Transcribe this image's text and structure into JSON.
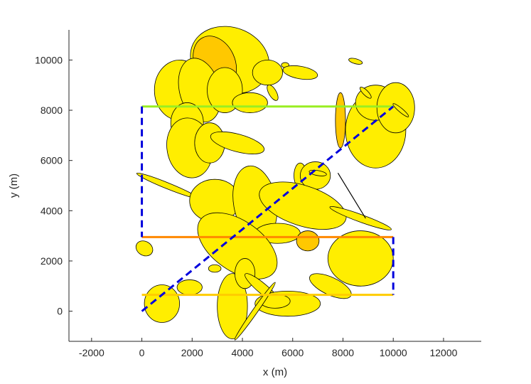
{
  "chart_data": {
    "type": "scatter",
    "title": "",
    "xlabel": "x (m)",
    "ylabel": "y (m)",
    "xlim": [
      -2900,
      13500
    ],
    "ylim": [
      -1200,
      11200
    ],
    "xticks": [
      -2000,
      0,
      2000,
      4000,
      6000,
      8000,
      10000,
      12000
    ],
    "yticks": [
      0,
      2000,
      4000,
      6000,
      8000,
      10000
    ],
    "grid": false,
    "legend": "none",
    "colors": {
      "ellipse_fill": "#ffee00",
      "ellipse_fill_dark": "#ffc800",
      "ellipse_edge": "#000000",
      "top_line": "#99ee22",
      "middle_line": "#ff8800",
      "bottom_line": "#ffcc00",
      "dashed": "#0000dd"
    },
    "ellipses": [
      {
        "cx": 3500,
        "cy": 10000,
        "rx": 1600,
        "ry": 1300,
        "angle": -20,
        "fill": "#ffee00"
      },
      {
        "cx": 2900,
        "cy": 9900,
        "rx": 800,
        "ry": 1100,
        "angle": 25,
        "fill": "#ffc800"
      },
      {
        "cx": 1500,
        "cy": 8800,
        "rx": 1000,
        "ry": 1200,
        "angle": 0,
        "fill": "#ffee00"
      },
      {
        "cx": 2300,
        "cy": 8800,
        "rx": 800,
        "ry": 1300,
        "angle": 15,
        "fill": "#ffee00"
      },
      {
        "cx": 3300,
        "cy": 8800,
        "rx": 700,
        "ry": 900,
        "angle": 0,
        "fill": "#ffee00"
      },
      {
        "cx": 5000,
        "cy": 9500,
        "rx": 600,
        "ry": 500,
        "angle": 0,
        "fill": "#ffee00"
      },
      {
        "cx": 5700,
        "cy": 9800,
        "rx": 150,
        "ry": 100,
        "angle": 0,
        "fill": "#ffee00"
      },
      {
        "cx": 6300,
        "cy": 9500,
        "rx": 700,
        "ry": 250,
        "angle": -10,
        "fill": "#ffee00"
      },
      {
        "cx": 4300,
        "cy": 8300,
        "rx": 700,
        "ry": 400,
        "angle": 0,
        "fill": "#ffee00"
      },
      {
        "cx": 5200,
        "cy": 8700,
        "rx": 150,
        "ry": 350,
        "angle": 30,
        "fill": "#ffee00"
      },
      {
        "cx": 1800,
        "cy": 7500,
        "rx": 650,
        "ry": 800,
        "angle": 0,
        "fill": "#ffee00"
      },
      {
        "cx": 1900,
        "cy": 6500,
        "rx": 900,
        "ry": 1200,
        "angle": 10,
        "fill": "#ffee00"
      },
      {
        "cx": 2700,
        "cy": 6700,
        "rx": 600,
        "ry": 800,
        "angle": 0,
        "fill": "#ffee00"
      },
      {
        "cx": 3800,
        "cy": 6700,
        "rx": 1100,
        "ry": 350,
        "angle": -15,
        "fill": "#ffee00"
      },
      {
        "cx": 9300,
        "cy": 7200,
        "rx": 1200,
        "ry": 1500,
        "angle": 0,
        "fill": "#ffee00"
      },
      {
        "cx": 9300,
        "cy": 8300,
        "rx": 800,
        "ry": 700,
        "angle": 0,
        "fill": "#ffee00"
      },
      {
        "cx": 10100,
        "cy": 8100,
        "rx": 750,
        "ry": 1000,
        "angle": 0,
        "fill": "#ffee00"
      },
      {
        "cx": 7900,
        "cy": 7600,
        "rx": 200,
        "ry": 1100,
        "angle": 0,
        "fill": "#ffc800"
      },
      {
        "cx": 8500,
        "cy": 9950,
        "rx": 280,
        "ry": 100,
        "angle": -15,
        "fill": "#ffee00"
      },
      {
        "cx": 8900,
        "cy": 8700,
        "rx": 300,
        "ry": 100,
        "angle": -45,
        "fill": "#ffee00"
      },
      {
        "cx": 10300,
        "cy": 8000,
        "rx": 400,
        "ry": 80,
        "angle": -40,
        "fill": "#ffee00"
      },
      {
        "cx": 1000,
        "cy": 5000,
        "rx": 1300,
        "ry": 120,
        "angle": -22,
        "fill": "#ffee00"
      },
      {
        "cx": 2900,
        "cy": 4400,
        "rx": 1000,
        "ry": 850,
        "angle": 0,
        "fill": "#ffee00"
      },
      {
        "cx": 4500,
        "cy": 4300,
        "rx": 850,
        "ry": 1500,
        "angle": 10,
        "fill": "#ffee00"
      },
      {
        "cx": 6300,
        "cy": 5400,
        "rx": 250,
        "ry": 500,
        "angle": 0,
        "fill": "#ffee00"
      },
      {
        "cx": 6900,
        "cy": 5400,
        "rx": 600,
        "ry": 550,
        "angle": 0,
        "fill": "#ffee00"
      },
      {
        "cx": 7000,
        "cy": 5500,
        "rx": 350,
        "ry": 100,
        "angle": -10,
        "fill": "#ffee00"
      },
      {
        "cx": 6400,
        "cy": 4200,
        "rx": 1800,
        "ry": 800,
        "angle": -18,
        "fill": "#ffee00"
      },
      {
        "cx": 8700,
        "cy": 3700,
        "rx": 1300,
        "ry": 150,
        "angle": -20,
        "fill": "#ffee00"
      },
      {
        "cx": 5400,
        "cy": 3100,
        "rx": 900,
        "ry": 400,
        "angle": 0,
        "fill": "#ffee00"
      },
      {
        "cx": 2900,
        "cy": 3200,
        "rx": 400,
        "ry": 350,
        "angle": 0,
        "fill": "#ffee00"
      },
      {
        "cx": 3800,
        "cy": 2600,
        "rx": 1800,
        "ry": 1000,
        "angle": -35,
        "fill": "#ffee00"
      },
      {
        "cx": 2900,
        "cy": 1700,
        "rx": 250,
        "ry": 150,
        "angle": 0,
        "fill": "#ffee00"
      },
      {
        "cx": 6600,
        "cy": 2800,
        "rx": 450,
        "ry": 400,
        "angle": 0,
        "fill": "#ffc800"
      },
      {
        "cx": 8700,
        "cy": 2100,
        "rx": 1300,
        "ry": 1100,
        "angle": 0,
        "fill": "#ffee00"
      },
      {
        "cx": 100,
        "cy": 2500,
        "rx": 350,
        "ry": 280,
        "angle": -30,
        "fill": "#ffee00"
      },
      {
        "cx": 800,
        "cy": 300,
        "rx": 700,
        "ry": 750,
        "angle": 0,
        "fill": "#ffee00"
      },
      {
        "cx": 1900,
        "cy": 950,
        "rx": 500,
        "ry": 300,
        "angle": 0,
        "fill": "#ffee00"
      },
      {
        "cx": 3600,
        "cy": 200,
        "rx": 600,
        "ry": 1300,
        "angle": 0,
        "fill": "#ffee00"
      },
      {
        "cx": 4100,
        "cy": 1500,
        "rx": 400,
        "ry": 600,
        "angle": 0,
        "fill": "#ffee00"
      },
      {
        "cx": 4800,
        "cy": 900,
        "rx": 900,
        "ry": 200,
        "angle": -40,
        "fill": "#ffee00"
      },
      {
        "cx": 5800,
        "cy": 300,
        "rx": 1300,
        "ry": 500,
        "angle": 0,
        "fill": "#ffee00"
      },
      {
        "cx": 5300,
        "cy": 400,
        "rx": 600,
        "ry": 280,
        "angle": 0,
        "fill": "#ffee00"
      },
      {
        "cx": 7500,
        "cy": 1000,
        "rx": 900,
        "ry": 350,
        "angle": -25,
        "fill": "#ffee00"
      },
      {
        "cx": 4500,
        "cy": 0,
        "rx": 1400,
        "ry": 100,
        "angle": 55,
        "fill": "#ffee00"
      }
    ],
    "segments": [
      {
        "x1": 0,
        "y1": 8150,
        "x2": 10000,
        "y2": 8150,
        "color": "#99ee22",
        "dashed": false,
        "width": 3
      },
      {
        "x1": 0,
        "y1": 2950,
        "x2": 10000,
        "y2": 2950,
        "color": "#ff8800",
        "dashed": false,
        "width": 3
      },
      {
        "x1": 0,
        "y1": 650,
        "x2": 10000,
        "y2": 650,
        "color": "#ffcc00",
        "dashed": false,
        "width": 3
      },
      {
        "x1": 0,
        "y1": 8150,
        "x2": 0,
        "y2": 2950,
        "color": "#0000dd",
        "dashed": true,
        "width": 3
      },
      {
        "x1": 10000,
        "y1": 2950,
        "x2": 10000,
        "y2": 650,
        "color": "#0000dd",
        "dashed": true,
        "width": 3
      },
      {
        "x1": 0,
        "y1": 0,
        "x2": 10000,
        "y2": 8150,
        "color": "#0000dd",
        "dashed": true,
        "width": 3
      },
      {
        "x1": 7800,
        "y1": 5500,
        "x2": 8900,
        "y2": 3700,
        "color": "#000000",
        "dashed": false,
        "width": 1.2
      }
    ]
  }
}
